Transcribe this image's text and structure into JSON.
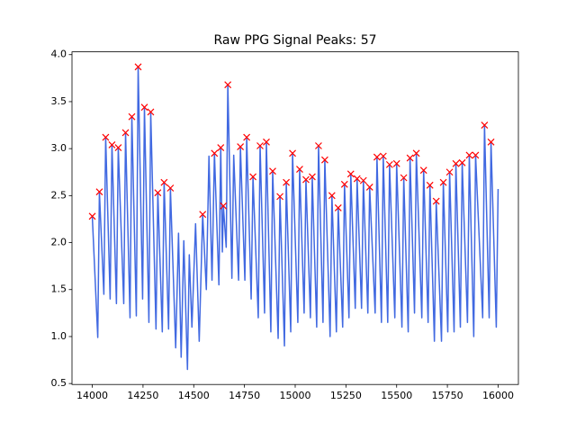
{
  "chart_data": {
    "type": "line",
    "title": "Raw PPG Signal Peaks: 57",
    "xlim": [
      13900,
      16100
    ],
    "ylim": [
      0.49,
      4.03
    ],
    "xticks": [
      14000,
      14250,
      14500,
      14750,
      15000,
      15250,
      15500,
      15750,
      16000
    ],
    "yticks": [
      0.5,
      {
        "value": 1,
        "label": "1.0"
      },
      1.5,
      {
        "value": 2,
        "label": "2.0"
      },
      2.5,
      {
        "value": 3,
        "label": "3.0"
      },
      3.5,
      {
        "value": 4,
        "label": "4.0"
      }
    ],
    "grid": false,
    "series": [
      {
        "type": "line",
        "color": "#4169e1",
        "x": [
          14000,
          14027,
          14035,
          14057,
          14066,
          14088,
          14097,
          14119,
          14128,
          14155,
          14164,
          14186,
          14195,
          14217,
          14226,
          14248,
          14257,
          14279,
          14288,
          14314,
          14323,
          14345,
          14354,
          14376,
          14385,
          14411,
          14425,
          14438,
          14451,
          14469,
          14478,
          14491,
          14509,
          14527,
          14544,
          14562,
          14575,
          14590,
          14602,
          14624,
          14633,
          14641,
          14646,
          14660,
          14668,
          14688,
          14697,
          14721,
          14730,
          14752,
          14761,
          14783,
          14792,
          14818,
          14827,
          14849,
          14858,
          14880,
          14889,
          14916,
          14925,
          14947,
          14956,
          14978,
          14987,
          15013,
          15022,
          15044,
          15053,
          15075,
          15084,
          15106,
          15115,
          15137,
          15146,
          15172,
          15181,
          15203,
          15212,
          15234,
          15243,
          15265,
          15274,
          15296,
          15305,
          15327,
          15336,
          15358,
          15367,
          15394,
          15403,
          15425,
          15434,
          15456,
          15465,
          15491,
          15500,
          15526,
          15535,
          15557,
          15566,
          15588,
          15597,
          15624,
          15633,
          15655,
          15664,
          15686,
          15695,
          15721,
          15730,
          15752,
          15761,
          15783,
          15792,
          15814,
          15823,
          15849,
          15858,
          15880,
          15889,
          15924,
          15933,
          15956,
          15965,
          15991,
          16000
        ],
        "values": [
          2.28,
          0.99,
          2.54,
          1.45,
          3.12,
          1.4,
          3.04,
          1.35,
          3.01,
          1.35,
          3.17,
          1.2,
          3.34,
          1.22,
          3.87,
          1.4,
          3.44,
          1.15,
          3.39,
          1.08,
          2.53,
          1.05,
          2.64,
          1.08,
          2.58,
          0.88,
          2.1,
          0.78,
          2.02,
          0.65,
          1.87,
          1.1,
          2.2,
          0.95,
          2.3,
          1.5,
          2.92,
          1.6,
          2.95,
          1.55,
          3.01,
          1.9,
          2.39,
          1.95,
          3.68,
          1.62,
          2.93,
          1.6,
          3.02,
          1.6,
          3.12,
          1.4,
          2.7,
          1.2,
          3.03,
          1.25,
          3.07,
          1.05,
          2.76,
          0.98,
          2.49,
          0.9,
          2.64,
          1.05,
          2.95,
          1.15,
          2.78,
          1.25,
          2.67,
          1.2,
          2.7,
          1.1,
          3.03,
          1.15,
          2.88,
          1.0,
          2.5,
          1.05,
          2.37,
          1.1,
          2.62,
          1.2,
          2.73,
          1.3,
          2.68,
          1.3,
          2.66,
          1.25,
          2.59,
          1.25,
          2.91,
          1.15,
          2.92,
          1.15,
          2.83,
          1.2,
          2.84,
          1.1,
          2.69,
          1.05,
          2.9,
          1.25,
          2.95,
          1.2,
          2.77,
          1.15,
          2.61,
          0.95,
          2.44,
          0.95,
          2.64,
          1.05,
          2.75,
          1.05,
          2.84,
          1.1,
          2.85,
          1.15,
          2.93,
          1.0,
          2.93,
          1.2,
          3.25,
          1.2,
          3.07,
          1.1,
          2.57
        ]
      },
      {
        "type": "scatter",
        "marker": "x",
        "color": "#ff0000",
        "x": [
          14000,
          14035,
          14066,
          14097,
          14128,
          14164,
          14195,
          14226,
          14257,
          14288,
          14323,
          14354,
          14385,
          14544,
          14602,
          14633,
          14646,
          14668,
          14730,
          14761,
          14792,
          14827,
          14858,
          14889,
          14925,
          14956,
          14987,
          15022,
          15053,
          15084,
          15115,
          15146,
          15181,
          15212,
          15243,
          15274,
          15305,
          15336,
          15367,
          15403,
          15434,
          15465,
          15500,
          15535,
          15566,
          15597,
          15633,
          15664,
          15695,
          15730,
          15761,
          15792,
          15823,
          15858,
          15889,
          15933,
          15965
        ],
        "values": [
          2.28,
          2.54,
          3.12,
          3.04,
          3.01,
          3.17,
          3.34,
          3.87,
          3.44,
          3.39,
          2.53,
          2.64,
          2.58,
          2.3,
          2.95,
          3.01,
          2.39,
          3.68,
          3.02,
          3.12,
          2.7,
          3.03,
          3.07,
          2.76,
          2.49,
          2.64,
          2.95,
          2.78,
          2.67,
          2.7,
          3.03,
          2.88,
          2.5,
          2.37,
          2.62,
          2.73,
          2.68,
          2.66,
          2.59,
          2.91,
          2.92,
          2.83,
          2.84,
          2.69,
          2.9,
          2.95,
          2.77,
          2.61,
          2.44,
          2.64,
          2.75,
          2.84,
          2.85,
          2.93,
          2.93,
          3.25,
          3.07
        ]
      }
    ]
  }
}
